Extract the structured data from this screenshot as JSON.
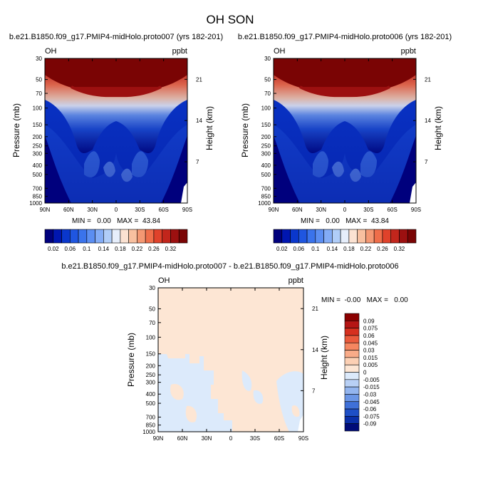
{
  "main_title": "OH SON",
  "panels": [
    {
      "title": "b.e21.B1850.f09_g17.PMIP4-midHolo.proto007 (yrs 182-201)",
      "var_label": "OH",
      "units_label": "ppbt",
      "xlabel": "",
      "ylabel": "Pressure (mb)",
      "ylabel_right": "Height (km)",
      "stats": "MIN =   0.00   MAX =  43.84",
      "x_ticks": [
        "90N",
        "60N",
        "30N",
        "0",
        "30S",
        "60S",
        "90S"
      ],
      "y_ticks": [
        "30",
        "50",
        "70",
        "100",
        "150",
        "200",
        "250",
        "300",
        "400",
        "500",
        "700",
        "850",
        "1000"
      ],
      "height_ticks": [
        "21",
        "14",
        "7"
      ],
      "colorbar_labels": [
        "0.02",
        "0.06",
        "0.1",
        "0.14",
        "0.18",
        "0.22",
        "0.26",
        "0.32"
      ]
    },
    {
      "title": "b.e21.B1850.f09_g17.PMIP4-midHolo.proto006 (yrs 182-201)",
      "var_label": "OH",
      "units_label": "ppbt",
      "xlabel": "",
      "ylabel": "Pressure (mb)",
      "ylabel_right": "Height (km)",
      "stats": "MIN =   0.00   MAX =  43.84",
      "x_ticks": [
        "90N",
        "60N",
        "30N",
        "0",
        "30S",
        "60S",
        "90S"
      ],
      "y_ticks": [
        "30",
        "50",
        "70",
        "100",
        "150",
        "200",
        "250",
        "300",
        "400",
        "500",
        "700",
        "850",
        "1000"
      ],
      "height_ticks": [
        "21",
        "14",
        "7"
      ],
      "colorbar_labels": [
        "0.02",
        "0.06",
        "0.1",
        "0.14",
        "0.18",
        "0.22",
        "0.26",
        "0.32"
      ]
    },
    {
      "title": "b.e21.B1850.f09_g17.PMIP4-midHolo.proto007 - b.e21.B1850.f09_g17.PMIP4-midHolo.proto006",
      "var_label": "OH",
      "units_label": "ppbt",
      "xlabel": "",
      "ylabel": "Pressure (mb)",
      "ylabel_right": "Height (km)",
      "stats": "MIN =  -0.00   MAX =   0.00",
      "x_ticks": [
        "90N",
        "60N",
        "30N",
        "0",
        "30S",
        "60S",
        "90S"
      ],
      "y_ticks": [
        "30",
        "50",
        "70",
        "100",
        "150",
        "200",
        "250",
        "300",
        "400",
        "500",
        "700",
        "850",
        "1000"
      ],
      "height_ticks": [
        "21",
        "14",
        "7"
      ],
      "colorbar_labels": [
        "0.09",
        "0.075",
        "0.06",
        "0.045",
        "0.03",
        "0.015",
        "0.005",
        "0",
        "-0.005",
        "-0.015",
        "-0.03",
        "-0.045",
        "-0.06",
        "-0.075",
        "-0.09"
      ]
    }
  ],
  "chart_data": [
    {
      "type": "heatmap",
      "title": "b.e21.B1850.f09_g17.PMIP4-midHolo.proto007 (yrs 182-201)",
      "x": [
        "90N",
        "60N",
        "30N",
        "0",
        "30S",
        "60S",
        "90S"
      ],
      "y_pressure_mb": [
        30,
        50,
        70,
        100,
        150,
        200,
        250,
        300,
        400,
        500,
        700,
        850,
        1000
      ],
      "height_km_ticks": [
        21,
        14,
        7
      ],
      "min": 0.0,
      "max": 43.84,
      "levels": [
        0.02,
        0.04,
        0.06,
        0.08,
        0.1,
        0.12,
        0.14,
        0.16,
        0.18,
        0.2,
        0.22,
        0.24,
        0.26,
        0.28,
        0.3,
        0.32
      ],
      "colors": [
        "#00007d",
        "#0016b0",
        "#0a37cc",
        "#1f56e0",
        "#3a73ec",
        "#5b8ef2",
        "#83acf6",
        "#b0cdf8",
        "#e6eefb",
        "#fbe2d2",
        "#f8c0a0",
        "#f49873",
        "#ef6e4a",
        "#e0422b",
        "#c2261c",
        "#9c1010",
        "#7a0404"
      ]
    },
    {
      "type": "heatmap",
      "title": "b.e21.B1850.f09_g17.PMIP4-midHolo.proto006 (yrs 182-201)",
      "x": [
        "90N",
        "60N",
        "30N",
        "0",
        "30S",
        "60S",
        "90S"
      ],
      "y_pressure_mb": [
        30,
        50,
        70,
        100,
        150,
        200,
        250,
        300,
        400,
        500,
        700,
        850,
        1000
      ],
      "height_km_ticks": [
        21,
        14,
        7
      ],
      "min": 0.0,
      "max": 43.84,
      "levels": [
        0.02,
        0.04,
        0.06,
        0.08,
        0.1,
        0.12,
        0.14,
        0.16,
        0.18,
        0.2,
        0.22,
        0.24,
        0.26,
        0.28,
        0.3,
        0.32
      ],
      "colors": [
        "#00007d",
        "#0016b0",
        "#0a37cc",
        "#1f56e0",
        "#3a73ec",
        "#5b8ef2",
        "#83acf6",
        "#b0cdf8",
        "#e6eefb",
        "#fbe2d2",
        "#f8c0a0",
        "#f49873",
        "#ef6e4a",
        "#e0422b",
        "#c2261c",
        "#9c1010",
        "#7a0404"
      ]
    },
    {
      "type": "heatmap",
      "title": "b.e21.B1850.f09_g17.PMIP4-midHolo.proto007 - b.e21.B1850.f09_g17.PMIP4-midHolo.proto006",
      "x": [
        "90N",
        "60N",
        "30N",
        "0",
        "30S",
        "60S",
        "90S"
      ],
      "y_pressure_mb": [
        30,
        50,
        70,
        100,
        150,
        200,
        250,
        300,
        400,
        500,
        700,
        850,
        1000
      ],
      "height_km_ticks": [
        21,
        14,
        7
      ],
      "min": -0.0,
      "max": 0.0,
      "levels": [
        -0.09,
        -0.075,
        -0.06,
        -0.045,
        -0.03,
        -0.015,
        -0.005,
        0,
        0.005,
        0.015,
        0.03,
        0.045,
        0.06,
        0.075,
        0.09
      ],
      "colors_top_to_bottom": [
        "#8b0000",
        "#b51515",
        "#d6301f",
        "#ea5a3c",
        "#f58660",
        "#f9ab88",
        "#fcd0b4",
        "#fde6d4",
        "#dceafb",
        "#b8d0f5",
        "#93b5ef",
        "#6b96e6",
        "#3f70d8",
        "#1e4fc6",
        "#0a2fa8",
        "#000b78"
      ],
      "dominant_values": {
        "upper_layer": "0 to 0.005",
        "lower_patches": "-0.005 to 0"
      }
    }
  ]
}
